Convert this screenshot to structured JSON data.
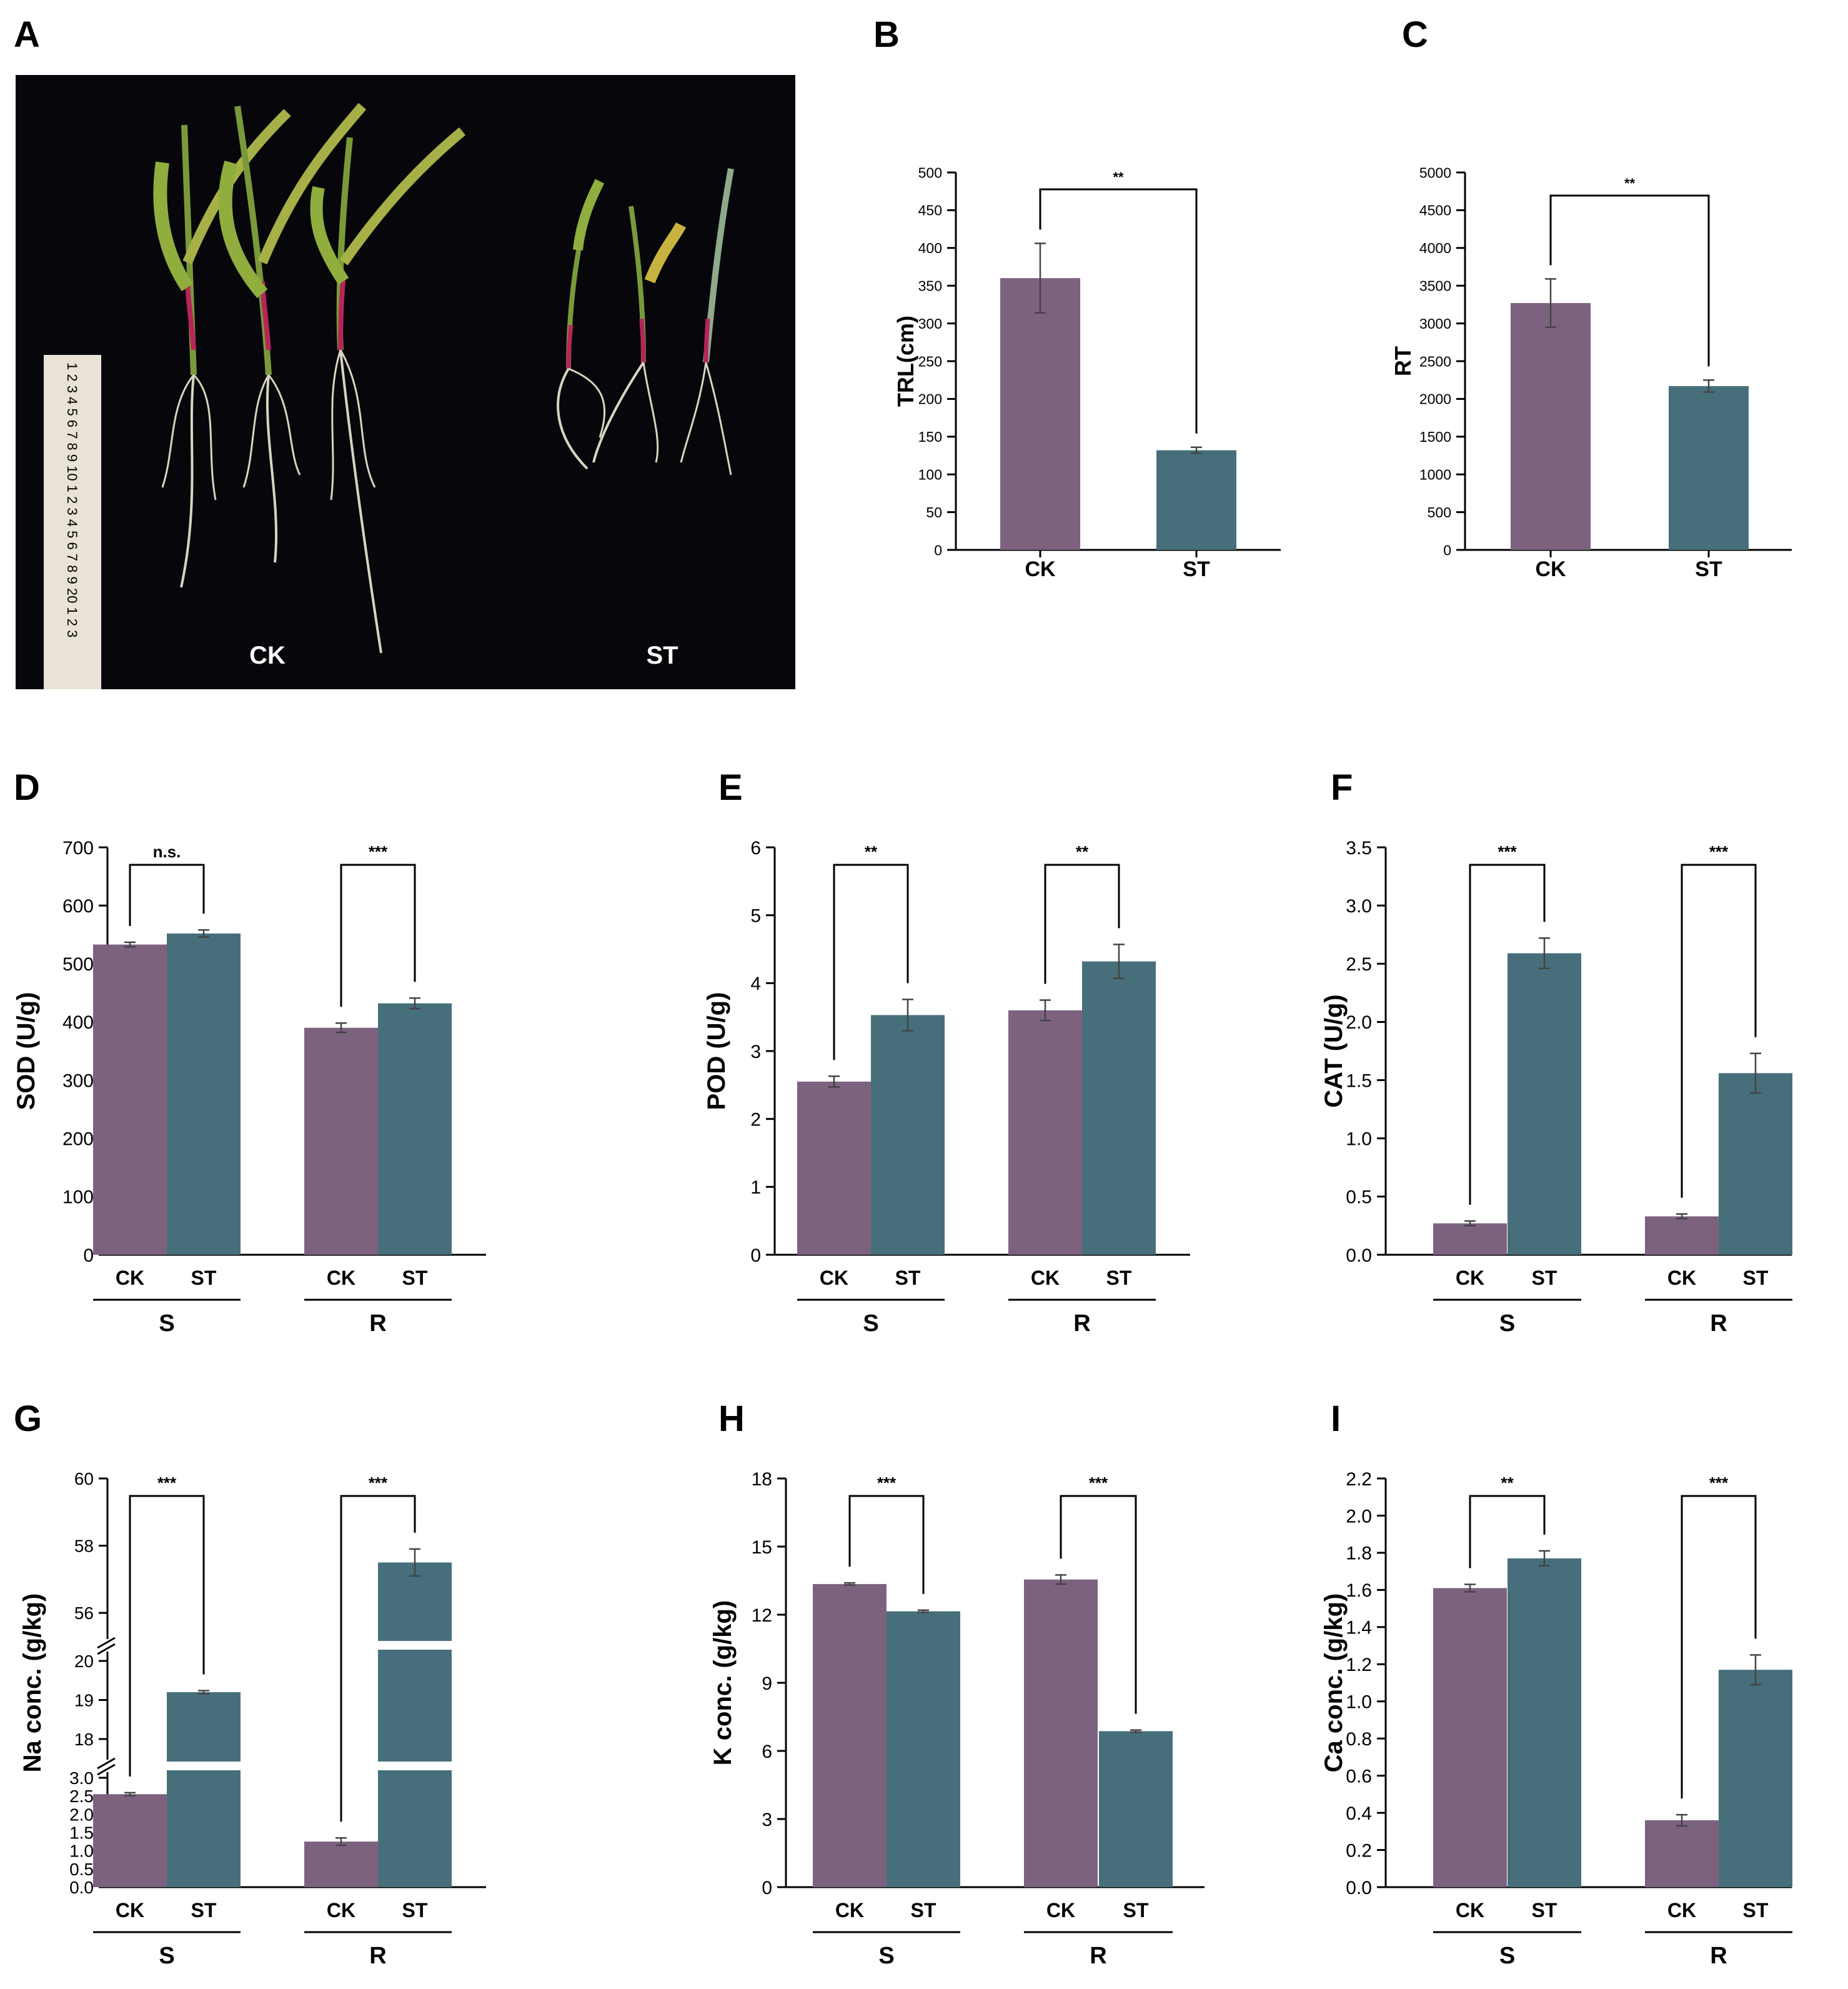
{
  "panel_labels": [
    "A",
    "B",
    "C",
    "D",
    "E",
    "F",
    "G",
    "H",
    "I"
  ],
  "photo": {
    "labels": {
      "ck": "CK",
      "st": "ST"
    },
    "ruler_text": "1 2 3 4 5 6 7 8 9 10 1 2 3 4 5 6 7 8 9 20 1 2 3"
  },
  "colors": {
    "ck": "#7d6280",
    "st": "#466f7b"
  },
  "chart_data": [
    {
      "id": "B",
      "type": "bar",
      "title": "",
      "xlabel": "",
      "ylabel": "TRL(cm)",
      "ylim": [
        0,
        500
      ],
      "yticks": [
        0,
        50,
        100,
        150,
        200,
        250,
        300,
        350,
        400,
        450,
        500
      ],
      "categories": [
        "CK",
        "ST"
      ],
      "values": [
        360,
        132
      ],
      "errors": [
        46,
        4
      ],
      "significance": [
        {
          "from": 0,
          "to": 1,
          "label": "**"
        }
      ]
    },
    {
      "id": "C",
      "type": "bar",
      "title": "",
      "xlabel": "",
      "ylabel": "RT",
      "ylim": [
        0,
        5000
      ],
      "yticks": [
        0,
        500,
        1000,
        1500,
        2000,
        2500,
        3000,
        3500,
        4000,
        4500,
        5000
      ],
      "categories": [
        "CK",
        "ST"
      ],
      "values": [
        3270,
        2170
      ],
      "errors": [
        320,
        80
      ],
      "significance": [
        {
          "from": 0,
          "to": 1,
          "label": "**"
        }
      ]
    },
    {
      "id": "D",
      "type": "bar",
      "ylabel": "SOD (U/g)",
      "ylim": [
        0,
        700
      ],
      "yticks": [
        0,
        100,
        200,
        300,
        400,
        500,
        600,
        700
      ],
      "groups": [
        "S",
        "R"
      ],
      "treatments": [
        "CK",
        "ST"
      ],
      "series": [
        {
          "name": "CK",
          "values": [
            533,
            390
          ],
          "errors": [
            4,
            8
          ]
        },
        {
          "name": "ST",
          "values": [
            552,
            432
          ],
          "errors": [
            6,
            9
          ]
        }
      ],
      "significance": [
        "n.s.",
        "***"
      ]
    },
    {
      "id": "E",
      "type": "bar",
      "ylabel": "POD (U/g)",
      "ylim": [
        0,
        6
      ],
      "yticks": [
        0,
        1,
        2,
        3,
        4,
        5,
        6
      ],
      "groups": [
        "S",
        "R"
      ],
      "treatments": [
        "CK",
        "ST"
      ],
      "series": [
        {
          "name": "CK",
          "values": [
            2.55,
            3.6
          ],
          "errors": [
            0.08,
            0.15
          ]
        },
        {
          "name": "ST",
          "values": [
            3.53,
            4.32
          ],
          "errors": [
            0.23,
            0.25
          ]
        }
      ],
      "significance": [
        "**",
        "**"
      ]
    },
    {
      "id": "F",
      "type": "bar",
      "ylabel": "CAT (U/g)",
      "ylim": [
        0,
        3.5
      ],
      "yticks": [
        "0.0",
        "0.5",
        "1.0",
        "1.5",
        "2.0",
        "2.5",
        "3.0",
        "3.5"
      ],
      "groups": [
        "S",
        "R"
      ],
      "treatments": [
        "CK",
        "ST"
      ],
      "series": [
        {
          "name": "CK",
          "values": [
            0.27,
            0.33
          ],
          "errors": [
            0.02,
            0.02
          ]
        },
        {
          "name": "ST",
          "values": [
            2.59,
            1.56
          ],
          "errors": [
            0.13,
            0.17
          ]
        }
      ],
      "significance": [
        "***",
        "***"
      ]
    },
    {
      "id": "G",
      "type": "bar",
      "ylabel": "Na conc. (g/kg)",
      "broken_axis": true,
      "yticks": [
        "0.0",
        "0.5",
        "1.0",
        "1.5",
        "2.0",
        "2.5",
        "3.0",
        "18",
        "19",
        "20",
        "56",
        "58",
        "60"
      ],
      "groups": [
        "S",
        "R"
      ],
      "treatments": [
        "CK",
        "ST"
      ],
      "series": [
        {
          "name": "CK",
          "values": [
            2.55,
            1.25
          ],
          "errors": [
            0.04,
            0.1
          ]
        },
        {
          "name": "ST",
          "values": [
            19.2,
            57.5
          ],
          "errors": [
            0.04,
            0.4
          ]
        }
      ],
      "significance": [
        "***",
        "***"
      ]
    },
    {
      "id": "H",
      "type": "bar",
      "ylabel": "K conc. (g/kg)",
      "ylim": [
        0,
        18
      ],
      "yticks": [
        0,
        3,
        6,
        9,
        12,
        15,
        18
      ],
      "groups": [
        "S",
        "R"
      ],
      "treatments": [
        "CK",
        "ST"
      ],
      "series": [
        {
          "name": "CK",
          "values": [
            13.35,
            13.55
          ],
          "errors": [
            0.05,
            0.2
          ]
        },
        {
          "name": "ST",
          "values": [
            12.15,
            6.87
          ],
          "errors": [
            0.05,
            0.05
          ]
        }
      ],
      "significance": [
        "***",
        "***"
      ]
    },
    {
      "id": "I",
      "type": "bar",
      "ylabel": "Ca conc. (g/kg)",
      "ylim": [
        0,
        2.2
      ],
      "yticks": [
        "0.0",
        "0.2",
        "0.4",
        "0.6",
        "0.8",
        "1.0",
        "1.2",
        "1.4",
        "1.6",
        "1.8",
        "2.0",
        "2.2"
      ],
      "groups": [
        "S",
        "R"
      ],
      "treatments": [
        "CK",
        "ST"
      ],
      "series": [
        {
          "name": "CK",
          "values": [
            1.61,
            0.36
          ],
          "errors": [
            0.02,
            0.03
          ]
        },
        {
          "name": "ST",
          "values": [
            1.77,
            1.17
          ],
          "errors": [
            0.04,
            0.08
          ]
        }
      ],
      "significance": [
        "**",
        "***"
      ]
    }
  ]
}
